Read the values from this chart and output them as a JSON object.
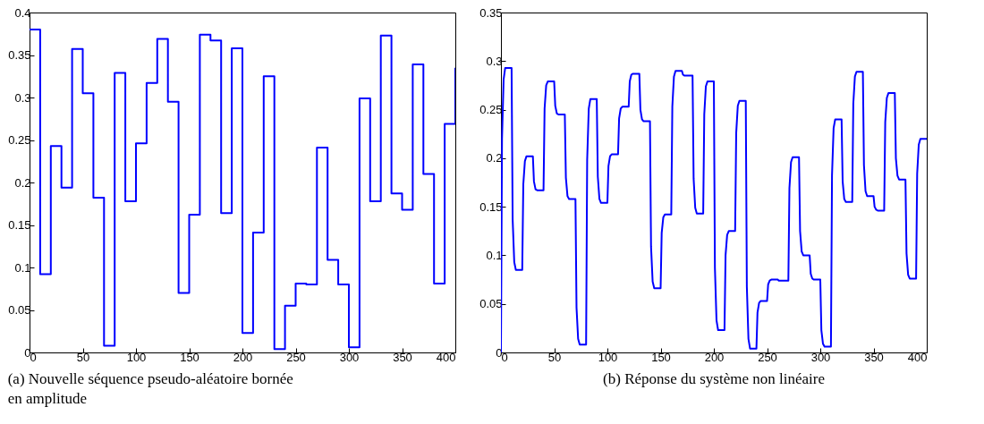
{
  "chart_data": [
    {
      "type": "step",
      "title": "(a) Nouvelle séquence pseudo-aléatoire bornée en amplitude",
      "xlim": [
        0,
        400
      ],
      "xticks": [
        0,
        50,
        100,
        150,
        200,
        250,
        300,
        350,
        400
      ],
      "ylim": [
        0,
        0.4
      ],
      "yticks": [
        0,
        0.05,
        0.1,
        0.15,
        0.2,
        0.25,
        0.3,
        0.35,
        0.4
      ],
      "series": [
        {
          "color": "#0000ff",
          "x": [
            0,
            10,
            20,
            30,
            40,
            50,
            60,
            70,
            80,
            90,
            100,
            110,
            120,
            130,
            140,
            150,
            160,
            170,
            180,
            190,
            200,
            210,
            220,
            230,
            240,
            250,
            260,
            270,
            280,
            290,
            300,
            310,
            320,
            330,
            340,
            350,
            360,
            370,
            380,
            390,
            400
          ],
          "values": [
            0.38,
            0.092,
            0.243,
            0.194,
            0.357,
            0.305,
            0.182,
            0.008,
            0.329,
            0.178,
            0.246,
            0.317,
            0.369,
            0.295,
            0.07,
            0.162,
            0.374,
            0.367,
            0.164,
            0.358,
            0.023,
            0.141,
            0.325,
            0.004,
            0.055,
            0.081,
            0.08,
            0.241,
            0.109,
            0.08,
            0.006,
            0.299,
            0.178,
            0.373,
            0.187,
            0.168,
            0.339,
            0.21,
            0.081,
            0.269,
            0.335
          ]
        }
      ]
    },
    {
      "type": "line",
      "title": "(b) Réponse du système non linéaire",
      "xlim": [
        0,
        400
      ],
      "xticks": [
        0,
        50,
        100,
        150,
        200,
        250,
        300,
        350,
        400
      ],
      "ylim": [
        0,
        0.35
      ],
      "yticks": [
        0,
        0.05,
        0.1,
        0.15,
        0.2,
        0.25,
        0.3,
        0.35
      ],
      "series": [
        {
          "color": "#0000ff",
          "x": [
            0,
            1,
            2.5,
            4,
            10,
            11,
            12.5,
            14,
            20,
            21,
            22.5,
            24,
            30,
            31,
            32.5,
            34,
            40,
            41,
            42.5,
            44,
            50,
            51,
            52.5,
            54,
            60,
            61,
            62.5,
            64,
            70,
            71,
            72.5,
            74,
            80,
            81,
            82.5,
            84,
            90,
            91,
            92.5,
            94,
            100,
            101,
            102.5,
            104,
            110,
            111,
            112.5,
            114,
            120,
            121,
            122.5,
            124,
            130,
            131,
            132.5,
            134,
            140,
            141,
            142.5,
            144,
            150,
            151,
            152.5,
            154,
            160,
            161,
            162.5,
            164,
            170,
            171,
            172.5,
            174,
            180,
            181,
            182.5,
            184,
            190,
            191,
            192.5,
            194,
            200,
            201,
            202.5,
            204,
            210,
            211,
            212.5,
            214,
            220,
            221,
            222.5,
            224,
            230,
            231,
            232.5,
            234,
            240,
            241,
            242.5,
            244,
            250,
            251,
            252.5,
            254,
            260,
            261,
            262.5,
            264,
            270,
            271,
            272.5,
            274,
            280,
            281,
            282.5,
            284,
            290,
            291,
            292.5,
            294,
            300,
            301,
            302.5,
            304,
            310,
            311,
            312.5,
            314,
            320,
            321,
            322.5,
            324,
            330,
            331,
            332.5,
            334,
            340,
            341,
            342.5,
            344,
            350,
            351,
            352.5,
            354,
            360,
            361,
            362.5,
            364,
            370,
            371,
            372.5,
            374,
            380,
            381,
            382.5,
            384,
            390,
            391,
            392.5,
            394,
            400
          ],
          "values": [
            0,
            0.22,
            0.281,
            0.293,
            0.293,
            0.137,
            0.093,
            0.085,
            0.085,
            0.173,
            0.197,
            0.202,
            0.202,
            0.176,
            0.168,
            0.167,
            0.167,
            0.251,
            0.275,
            0.279,
            0.279,
            0.254,
            0.246,
            0.245,
            0.245,
            0.18,
            0.161,
            0.158,
            0.158,
            0.046,
            0.014,
            0.008,
            0.008,
            0.198,
            0.251,
            0.261,
            0.261,
            0.181,
            0.158,
            0.154,
            0.154,
            0.192,
            0.202,
            0.204,
            0.204,
            0.241,
            0.251,
            0.253,
            0.253,
            0.279,
            0.286,
            0.287,
            0.287,
            0.25,
            0.24,
            0.238,
            0.238,
            0.109,
            0.073,
            0.066,
            0.066,
            0.123,
            0.139,
            0.142,
            0.142,
            0.253,
            0.284,
            0.29,
            0.29,
            0.286,
            0.285,
            0.285,
            0.285,
            0.179,
            0.149,
            0.143,
            0.143,
            0.245,
            0.274,
            0.279,
            0.279,
            0.087,
            0.033,
            0.023,
            0.023,
            0.1,
            0.121,
            0.125,
            0.125,
            0.226,
            0.254,
            0.259,
            0.259,
            0.068,
            0.014,
            0.004,
            0.004,
            0.041,
            0.051,
            0.053,
            0.053,
            0.07,
            0.074,
            0.075,
            0.075,
            0.074,
            0.074,
            0.074,
            0.074,
            0.169,
            0.196,
            0.201,
            0.201,
            0.125,
            0.104,
            0.1,
            0.1,
            0.081,
            0.076,
            0.075,
            0.075,
            0.023,
            0.009,
            0.006,
            0.006,
            0.182,
            0.231,
            0.24,
            0.24,
            0.176,
            0.158,
            0.155,
            0.155,
            0.256,
            0.284,
            0.289,
            0.289,
            0.193,
            0.166,
            0.161,
            0.161,
            0.15,
            0.147,
            0.146,
            0.146,
            0.237,
            0.262,
            0.267,
            0.267,
            0.2,
            0.182,
            0.178,
            0.178,
            0.102,
            0.08,
            0.076,
            0.076,
            0.184,
            0.214,
            0.22,
            0.22
          ]
        }
      ]
    }
  ]
}
